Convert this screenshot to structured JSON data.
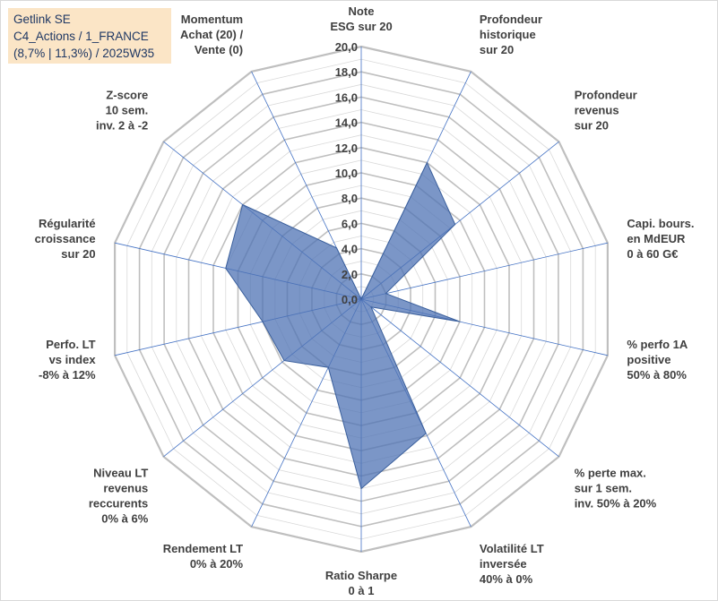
{
  "title_box": {
    "line1": "Getlink SE",
    "line2": "C4_Actions / 1_FRANCE",
    "line3": "(8,7% | 11,3%) / 2025W35"
  },
  "chart_data": {
    "type": "radar",
    "categories": [
      [
        "Note",
        "ESG sur 20"
      ],
      [
        "Profondeur",
        "historique",
        "sur 20"
      ],
      [
        "Profondeur",
        "revenus",
        "sur 20"
      ],
      [
        "Capi. bours.",
        "en MdEUR",
        "0 à 60 G€"
      ],
      [
        "% perfo 1A",
        "positive",
        "50% à 80%"
      ],
      [
        "% perte max.",
        "sur 1 sem.",
        "inv. 50% à 20%"
      ],
      [
        "Volatilité LT",
        "inversée",
        "40% à 0%"
      ],
      [
        "Ratio Sharpe",
        "0 à 1"
      ],
      [
        "Rendement LT",
        "0% à 20%"
      ],
      [
        "Niveau LT",
        "revenus",
        "reccurents",
        "0% à 6%"
      ],
      [
        "Perfo. LT",
        "vs index",
        "-8% à 12%"
      ],
      [
        "Régularité",
        "croissance",
        "sur 20"
      ],
      [
        "Z-score",
        "10 sem.",
        "inv. 2 à -2"
      ],
      [
        "Momentum",
        "Achat (20) /",
        "Vente (0)"
      ]
    ],
    "values": [
      0,
      12,
      9.5,
      2,
      8,
      1,
      11.8,
      15,
      6,
      7.8,
      8,
      11,
      12,
      4.5
    ],
    "ylim": [
      0,
      20
    ],
    "tick_step": 2,
    "tick_labels": [
      "0,0",
      "2,0",
      "4,0",
      "6,0",
      "8,0",
      "10,0",
      "12,0",
      "14,0",
      "16,0",
      "18,0",
      "20,0"
    ],
    "grid": true,
    "legend": false,
    "colors": {
      "fill": "#4f73b4",
      "stroke": "#3a5f9c",
      "ring_major": "#bfbfbf",
      "ring_minor": "#d9d9d9",
      "spoke": "#4472c4"
    }
  }
}
